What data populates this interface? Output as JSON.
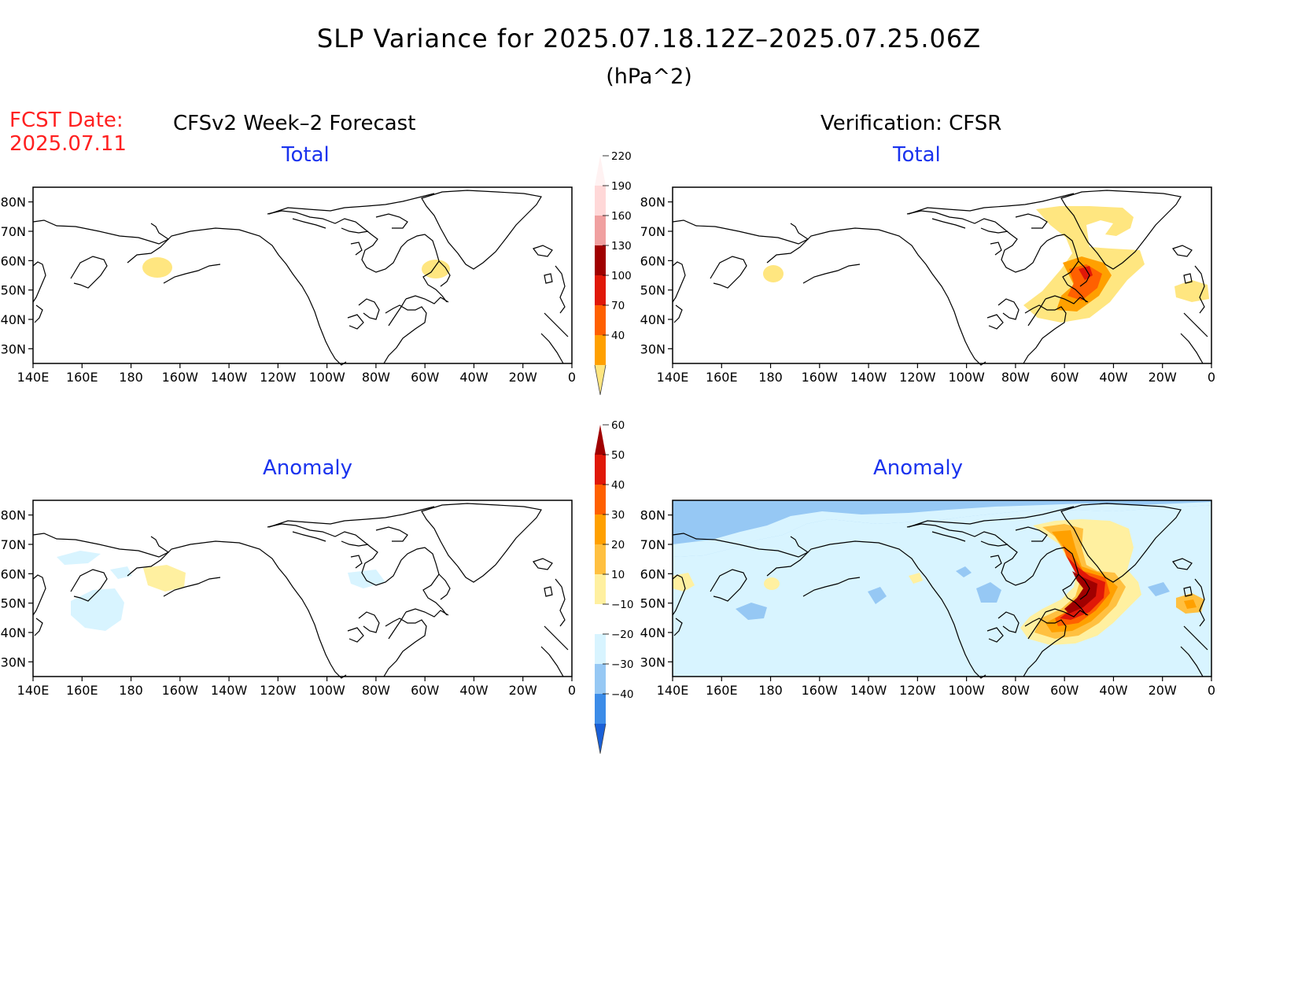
{
  "title": "SLP Variance for 2025.07.18.12Z–2025.07.25.06Z",
  "units": "(hPa^2)",
  "forecast_date": {
    "label": "FCST Date:",
    "value": "2025.07.11"
  },
  "columns": {
    "left": "CFSv2 Week–2 Forecast",
    "right": "Verification: CFSR"
  },
  "panels": {
    "forecast_total": {
      "title": "Total"
    },
    "verification_total": {
      "title": "Total"
    },
    "forecast_anomaly": {
      "title": "Anomaly"
    },
    "verification_anomaly": {
      "title": "Anomaly"
    }
  },
  "axes": {
    "lat_labels": [
      "80N",
      "70N",
      "60N",
      "50N",
      "40N",
      "30N"
    ],
    "lon_labels": [
      "140E",
      "160E",
      "180",
      "160W",
      "140W",
      "120W",
      "100W",
      "80W",
      "60W",
      "40W",
      "20W",
      "0"
    ],
    "lon_range_deg_east": [
      140,
      360
    ],
    "lat_range": [
      25,
      85
    ]
  },
  "colorbars": {
    "total": {
      "levels": [
        "40",
        "70",
        "100",
        "130",
        "160",
        "190",
        "220"
      ],
      "colors": [
        "#ffe680",
        "#ffa000",
        "#ff6000",
        "#e01808",
        "#a00000",
        "#f0a0a0",
        "#ffd8d8",
        "#fff2f2"
      ]
    },
    "anomaly": {
      "levels": [
        "−40",
        "−30",
        "−20",
        "−10",
        "10",
        "20",
        "30",
        "40",
        "50",
        "60"
      ],
      "colors": [
        "#1a60d8",
        "#3c8ce8",
        "#96c8f4",
        "#d8f4ff",
        "#ffffff",
        "#fff0a0",
        "#ffc040",
        "#ffa000",
        "#ff6000",
        "#e01808",
        "#a00000"
      ]
    }
  }
}
